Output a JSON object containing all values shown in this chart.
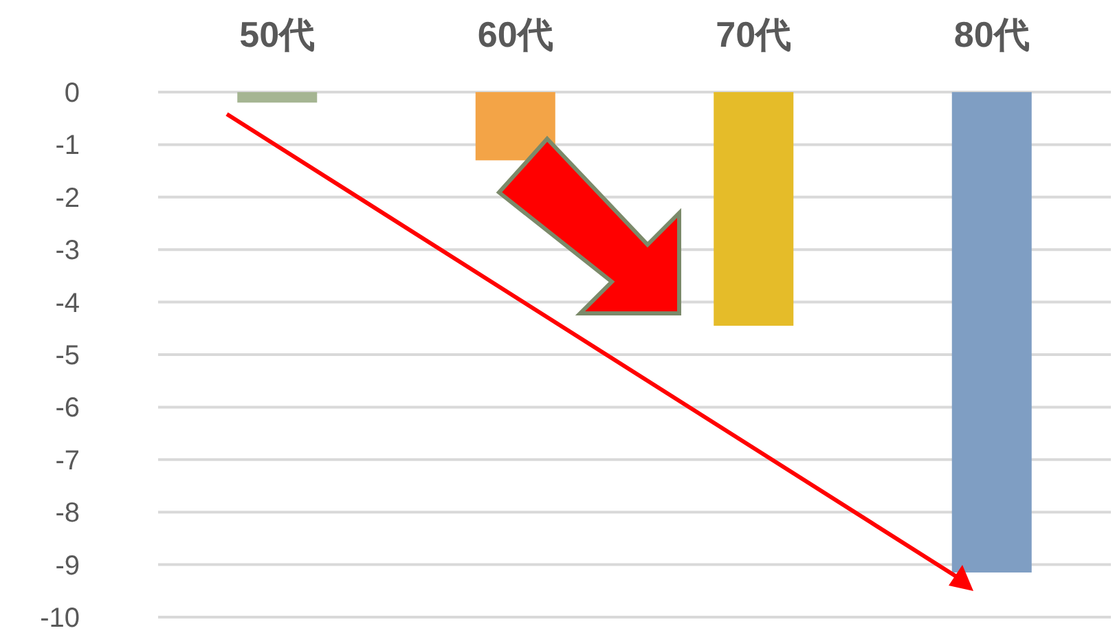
{
  "chart_data": {
    "type": "bar",
    "categories": [
      "50代",
      "60代",
      "70代",
      "80代"
    ],
    "values": [
      -0.2,
      -1.3,
      -4.45,
      -9.15
    ],
    "colors": [
      "#a5b592",
      "#f3a447",
      "#e5bc29",
      "#7f9ec3"
    ],
    "ylim": [
      -10,
      0
    ],
    "yticks": [
      0,
      -1,
      -2,
      -3,
      -4,
      -5,
      -6,
      -7,
      -8,
      -9,
      -10
    ],
    "grid": "y"
  }
}
